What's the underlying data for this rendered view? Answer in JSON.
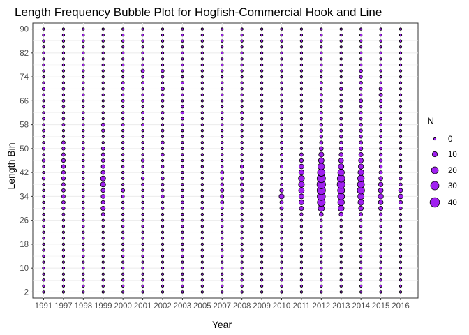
{
  "chart_data": {
    "type": "scatter",
    "title": "Length Frequency Bubble Plot for Hogfish-Commercial Hook and Line",
    "xlabel": "Year",
    "ylabel": "Length Bin",
    "x_categories": [
      "1991",
      "1997",
      "1998",
      "1999",
      "2000",
      "2001",
      "2002",
      "2003",
      "2005",
      "2007",
      "2008",
      "2009",
      "2010",
      "2011",
      "2012",
      "2013",
      "2014",
      "2015",
      "2016"
    ],
    "y_ticks": [
      2,
      10,
      18,
      26,
      34,
      42,
      50,
      58,
      66,
      74,
      82,
      90
    ],
    "y_range": [
      0,
      92
    ],
    "bin_step": 2,
    "grid": true,
    "legend": {
      "title": "N",
      "placement": "right",
      "entries": [
        {
          "label": "0",
          "value": 0
        },
        {
          "label": "10",
          "value": 10
        },
        {
          "label": "20",
          "value": 20
        },
        {
          "label": "30",
          "value": 30
        },
        {
          "label": "40",
          "value": 40
        }
      ]
    },
    "colors": {
      "fill": "#a020f0",
      "stroke": "#000000",
      "panel": "#ffffff",
      "grid": "#ebebeb"
    },
    "series": [
      {
        "year": "1991",
        "counts": {
          "40": 2,
          "46": 2,
          "50": 2,
          "56": 1,
          "60": 1,
          "64": 1,
          "70": 2
        }
      },
      {
        "year": "1997",
        "counts": {
          "28": 1,
          "30": 2,
          "32": 3,
          "34": 3,
          "36": 3,
          "38": 3,
          "40": 4,
          "42": 4,
          "44": 4,
          "46": 4,
          "48": 3,
          "50": 2,
          "52": 3,
          "58": 1,
          "60": 1,
          "64": 1,
          "66": 1,
          "70": 1
        }
      },
      {
        "year": "1998",
        "counts": {
          "50": 1
        }
      },
      {
        "year": "1999",
        "counts": {
          "28": 3,
          "30": 6,
          "32": 4,
          "34": 5,
          "36": 5,
          "38": 9,
          "40": 9,
          "42": 5,
          "44": 4,
          "46": 3,
          "48": 3,
          "50": 3,
          "56": 2,
          "58": 3
        }
      },
      {
        "year": "2000",
        "counts": {
          "34": 1,
          "36": 3,
          "58": 1,
          "66": 1,
          "70": 1,
          "72": 1
        }
      },
      {
        "year": "2001",
        "counts": {
          "38": 1,
          "40": 2,
          "46": 2,
          "58": 1,
          "62": 1,
          "66": 1,
          "72": 1,
          "74": 1,
          "76": 3
        }
      },
      {
        "year": "2002",
        "counts": {
          "30": 1,
          "34": 2,
          "36": 1,
          "38": 1,
          "40": 2,
          "44": 1,
          "48": 2,
          "52": 2,
          "56": 1,
          "62": 1,
          "66": 1,
          "68": 1,
          "70": 3,
          "74": 1,
          "76": 2
        }
      },
      {
        "year": "2003",
        "counts": {
          "32": 1,
          "60": 1,
          "62": 2,
          "64": 1,
          "72": 1
        }
      },
      {
        "year": "2005",
        "counts": {
          "30": 1
        }
      },
      {
        "year": "2007",
        "counts": {
          "30": 1,
          "32": 3,
          "34": 3,
          "36": 3,
          "38": 2,
          "40": 2,
          "42": 3
        }
      },
      {
        "year": "2008",
        "counts": {
          "32": 1,
          "36": 1,
          "38": 2,
          "40": 2,
          "42": 1,
          "44": 2,
          "62": 1
        }
      },
      {
        "year": "2009",
        "counts": {}
      },
      {
        "year": "2010",
        "counts": {
          "30": 3,
          "32": 3,
          "34": 9,
          "36": 4,
          "38": 1,
          "44": 1,
          "48": 1,
          "52": 1
        }
      },
      {
        "year": "2011",
        "counts": {
          "28": 2,
          "30": 6,
          "32": 9,
          "34": 9,
          "36": 12,
          "38": 13,
          "40": 14,
          "42": 10,
          "44": 8,
          "46": 4,
          "48": 3
        }
      },
      {
        "year": "2012",
        "counts": {
          "28": 5,
          "30": 16,
          "32": 26,
          "34": 28,
          "36": 30,
          "38": 32,
          "40": 30,
          "42": 24,
          "44": 18,
          "46": 12,
          "48": 9,
          "50": 5,
          "52": 3,
          "54": 2,
          "56": 2,
          "58": 2,
          "60": 1,
          "62": 1,
          "66": 1,
          "68": 1,
          "72": 1
        }
      },
      {
        "year": "2013",
        "counts": {
          "28": 5,
          "30": 14,
          "32": 18,
          "34": 20,
          "36": 20,
          "38": 26,
          "40": 24,
          "42": 18,
          "44": 12,
          "46": 8,
          "48": 5,
          "50": 3,
          "52": 2,
          "54": 2,
          "56": 1,
          "58": 1,
          "60": 1,
          "64": 1,
          "66": 1,
          "70": 2
        }
      },
      {
        "year": "2014",
        "counts": {
          "28": 3,
          "30": 8,
          "32": 14,
          "34": 16,
          "36": 22,
          "38": 20,
          "40": 18,
          "42": 14,
          "44": 10,
          "46": 8,
          "48": 6,
          "50": 4,
          "52": 3,
          "54": 2,
          "56": 2,
          "58": 2,
          "60": 1,
          "62": 1,
          "64": 1,
          "66": 3,
          "70": 1,
          "72": 2,
          "74": 2,
          "76": 2
        }
      },
      {
        "year": "2015",
        "counts": {
          "28": 2,
          "30": 6,
          "32": 8,
          "34": 10,
          "36": 8,
          "38": 7,
          "40": 5,
          "42": 3,
          "44": 2,
          "46": 2,
          "48": 2,
          "50": 1,
          "52": 1,
          "54": 1,
          "58": 1,
          "60": 1,
          "64": 1,
          "66": 2,
          "68": 3,
          "70": 3
        }
      },
      {
        "year": "2016",
        "counts": {
          "30": 2,
          "32": 4,
          "34": 8,
          "36": 5,
          "38": 2,
          "40": 2
        }
      }
    ]
  }
}
